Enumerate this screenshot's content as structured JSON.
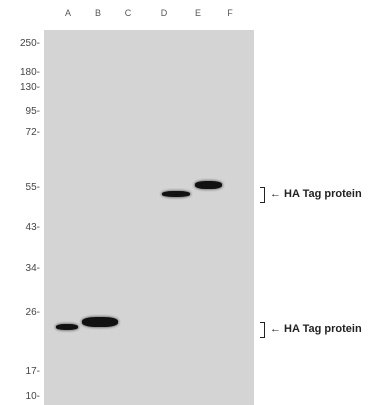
{
  "lanes": [
    "A",
    "B",
    "C",
    "D",
    "E",
    "F"
  ],
  "markers": [
    "250-",
    "180-",
    "130-",
    "95-",
    "72-",
    "55-",
    "43-",
    "34-",
    "26-",
    "17-",
    "10-"
  ],
  "bands": [
    {
      "lane": "A",
      "marker_kda": 24
    },
    {
      "lane": "B",
      "marker_kda": 24
    },
    {
      "lane": "D",
      "marker_kda": 52
    },
    {
      "lane": "E",
      "marker_kda": 56
    }
  ],
  "annotations": [
    {
      "text": "← HA Tag protein"
    },
    {
      "text": "← HA Tag protein"
    }
  ],
  "colors": {
    "membrane": "#d4d4d4",
    "band": "#111111"
  }
}
